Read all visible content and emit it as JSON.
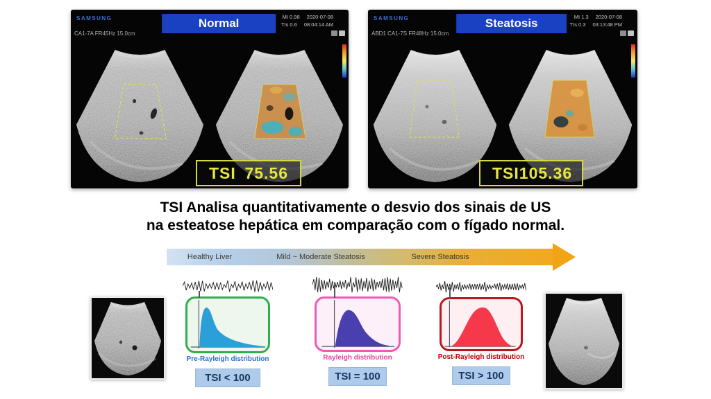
{
  "panels": [
    {
      "brand": "SAMSUNG",
      "banner": "Normal",
      "probe": "CA1-7A FR45Hz 15.0cm",
      "mi": "MI 0.98",
      "date": "2020-07-08",
      "tis": "TIs 0.6",
      "time": "08:04:14 AM",
      "tsi_label": "TSI",
      "tsi_value": "75.56"
    },
    {
      "brand": "SAMSUNG",
      "banner": "Steatosis",
      "probe": "ABD1 CA1-7S FR48Hz 15.0cm",
      "mi": "MI 1.3",
      "date": "2020-07-08",
      "tis": "TIs 0.3",
      "time": "03:13:48 PM",
      "tsi_label": "TSI",
      "tsi_value": "105.36"
    }
  ],
  "caption": {
    "line1": "TSI Analisa quantitativamente o desvio dos sinais de US",
    "line2": "na esteatose hepática em comparação com o fígado normal."
  },
  "spectrum": {
    "labels": [
      "Healthy Liver",
      "Mild ~ Moderate Steatosis",
      "Severe Steatosis"
    ],
    "gradient_start": "#b5cfe9",
    "gradient_end": "#f2a81f"
  },
  "distributions": [
    {
      "label": "Pre-Rayleigh distribution",
      "tsi": "TSI < 100",
      "box_border": "#2fae4e",
      "box_bg": "#edf7ee",
      "curve_color": "#2b9fd8",
      "label_color": "#2a6fc5"
    },
    {
      "label": "Rayleigh distribution",
      "tsi": "TSI = 100",
      "box_border": "#f05ab4",
      "box_bg": "#fdf0f8",
      "curve_color": "#4a3fae",
      "label_color": "#ee3fa6"
    },
    {
      "label": "Post-Rayleigh distribution",
      "tsi": "TSI > 100",
      "box_border": "#b9161f",
      "box_bg": "#fdeff2",
      "curve_color": "#f5394b",
      "label_color": "#c00000"
    }
  ],
  "colors": {
    "banner_blue": "#1b41c3",
    "tsi_readout_yellow": "#e6e83e",
    "tsi_chip_bg": "#aecbec",
    "tsi_chip_text": "#17365d"
  }
}
